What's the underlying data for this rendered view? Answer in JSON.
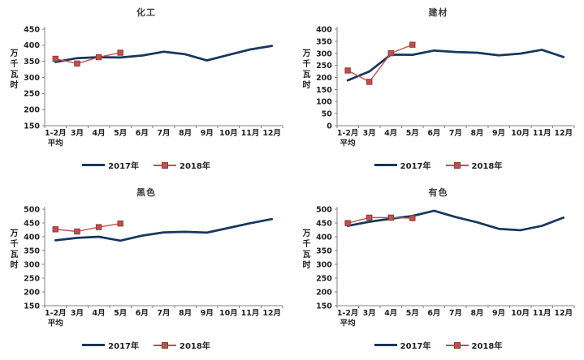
{
  "chart_data": [
    {
      "type": "line",
      "title": "化工",
      "ylabel": "万千瓦时",
      "ylim": [
        150,
        450
      ],
      "ytick_step": 50,
      "grid": false,
      "legend_position": "bottom",
      "categories": [
        "1-2月\n平均",
        "3月",
        "4月",
        "5月",
        "6月",
        "7月",
        "8月",
        "9月",
        "10月",
        "11月",
        "12月"
      ],
      "series": [
        {
          "name": "2017年",
          "color": "#17375E",
          "marker": "none",
          "line_width": 2.75,
          "values": [
            348,
            360,
            363,
            362,
            368,
            380,
            372,
            353,
            370,
            387,
            398
          ]
        },
        {
          "name": "2018年",
          "color": "#C0504D",
          "marker_border": "#953735",
          "marker": "square",
          "line_width": 1.4,
          "values": [
            358,
            343,
            363,
            377
          ]
        }
      ]
    },
    {
      "type": "line",
      "title": "建材",
      "ylabel": "万千瓦时",
      "ylim": [
        0,
        400
      ],
      "ytick_step": 50,
      "grid": false,
      "legend_position": "bottom",
      "categories": [
        "1-2月\n平均",
        "3月",
        "4月",
        "5月",
        "6月",
        "7月",
        "8月",
        "9月",
        "10月",
        "11月",
        "12月"
      ],
      "series": [
        {
          "name": "2017年",
          "color": "#17375E",
          "marker": "none",
          "line_width": 2.75,
          "values": [
            188,
            225,
            295,
            294,
            312,
            306,
            303,
            292,
            299,
            315,
            285
          ]
        },
        {
          "name": "2018年",
          "color": "#C0504D",
          "marker_border": "#953735",
          "marker": "square",
          "line_width": 1.4,
          "values": [
            229,
            182,
            301,
            336
          ]
        }
      ]
    },
    {
      "type": "line",
      "title": "黑色",
      "ylabel": "万千瓦时",
      "ylim": [
        150,
        500
      ],
      "ytick_step": 50,
      "grid": false,
      "legend_position": "bottom",
      "categories": [
        "1-2月\n平均",
        "3月",
        "4月",
        "5月",
        "6月",
        "7月",
        "8月",
        "9月",
        "10月",
        "11月",
        "12月"
      ],
      "series": [
        {
          "name": "2017年",
          "color": "#17375E",
          "marker": "none",
          "line_width": 2.75,
          "values": [
            387,
            396,
            400,
            386,
            404,
            416,
            418,
            415,
            432,
            449,
            464
          ]
        },
        {
          "name": "2018年",
          "color": "#C0504D",
          "marker_border": "#953735",
          "marker": "square",
          "line_width": 1.4,
          "values": [
            427,
            419,
            435,
            448
          ]
        }
      ]
    },
    {
      "type": "line",
      "title": "有色",
      "ylabel": "万千瓦时",
      "ylim": [
        150,
        500
      ],
      "ytick_step": 50,
      "grid": false,
      "legend_position": "bottom",
      "categories": [
        "1-2月\n平均",
        "3月",
        "4月",
        "5月",
        "6月",
        "7月",
        "8月",
        "9月",
        "10月",
        "11月",
        "12月"
      ],
      "series": [
        {
          "name": "2017年",
          "color": "#17375E",
          "marker": "none",
          "line_width": 2.75,
          "values": [
            440,
            455,
            466,
            476,
            495,
            472,
            453,
            429,
            424,
            440,
            470
          ]
        },
        {
          "name": "2018年",
          "color": "#C0504D",
          "marker_border": "#953735",
          "marker": "square",
          "line_width": 1.4,
          "values": [
            450,
            470,
            470,
            468
          ]
        }
      ]
    }
  ]
}
